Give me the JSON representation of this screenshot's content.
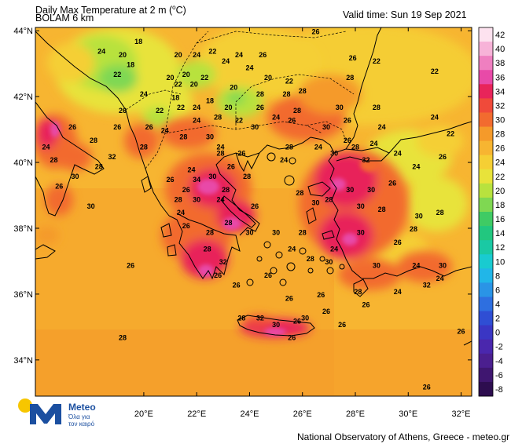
{
  "header": {
    "title_prefix": "Daily Max Temperature at 2 m (",
    "title_unit_deg": "o",
    "title_suffix": "C)",
    "model": "BOLAM 6 km",
    "valid_time": "Valid time: Sun 19 Sep 2021"
  },
  "footer": {
    "credit": "National Observatory of Athens, Greece - meteo.gr"
  },
  "logo": {
    "name": "Meteo",
    "tagline_1": "Όλα για",
    "tagline_2": "τον καιρό",
    "colors": {
      "yellow": "#f7c600",
      "blue": "#1b4fa0"
    }
  },
  "axes": {
    "lat_labels": [
      "44°N",
      "42°N",
      "40°N",
      "38°N",
      "36°N",
      "34°N"
    ],
    "lon_labels": [
      "20°E",
      "22°E",
      "24°E",
      "26°E",
      "28°E",
      "30°E",
      "32°E"
    ]
  },
  "colorbar": {
    "levels": [
      "42",
      "40",
      "38",
      "36",
      "34",
      "32",
      "30",
      "28",
      "26",
      "24",
      "22",
      "20",
      "18",
      "16",
      "14",
      "12",
      "10",
      "8",
      "6",
      "4",
      "2",
      "0",
      "-2",
      "-4",
      "-6",
      "-8"
    ],
    "colors": [
      "#fde2ef",
      "#f7b3d8",
      "#ef7fc0",
      "#e84aa8",
      "#e8245a",
      "#f04a3a",
      "#f26b2f",
      "#f59a2a",
      "#f7b531",
      "#f5cf34",
      "#e8e33a",
      "#b8e23e",
      "#7fd852",
      "#3fcb64",
      "#22c77f",
      "#1ac9a4",
      "#19cbd0",
      "#21b6e8",
      "#2a94e6",
      "#2e6fe0",
      "#2f4ed4",
      "#3a36c4",
      "#4a27ad",
      "#4b1f8f",
      "#3f1670",
      "#2d0d4f"
    ]
  },
  "map_labels": [
    {
      "t": "18",
      "lon": 19.8,
      "lat": 43.6
    },
    {
      "t": "24",
      "lon": 18.4,
      "lat": 43.3
    },
    {
      "t": "20",
      "lon": 19.2,
      "lat": 43.2
    },
    {
      "t": "18",
      "lon": 19.5,
      "lat": 42.9
    },
    {
      "t": "22",
      "lon": 19.0,
      "lat": 42.6
    },
    {
      "t": "20",
      "lon": 21.3,
      "lat": 43.2
    },
    {
      "t": "24",
      "lon": 22.0,
      "lat": 43.2
    },
    {
      "t": "22",
      "lon": 22.6,
      "lat": 43.3
    },
    {
      "t": "24",
      "lon": 23.1,
      "lat": 43.0
    },
    {
      "t": "24",
      "lon": 23.6,
      "lat": 43.2
    },
    {
      "t": "26",
      "lon": 24.5,
      "lat": 43.2
    },
    {
      "t": "26",
      "lon": 26.5,
      "lat": 43.9
    },
    {
      "t": "26",
      "lon": 27.9,
      "lat": 43.1
    },
    {
      "t": "22",
      "lon": 28.8,
      "lat": 43.0
    },
    {
      "t": "22",
      "lon": 31.0,
      "lat": 42.7
    },
    {
      "t": "24",
      "lon": 24.0,
      "lat": 42.8
    },
    {
      "t": "20",
      "lon": 24.7,
      "lat": 42.5
    },
    {
      "t": "22",
      "lon": 25.5,
      "lat": 42.4
    },
    {
      "t": "20",
      "lon": 21.0,
      "lat": 42.5
    },
    {
      "t": "20",
      "lon": 21.6,
      "lat": 42.6
    },
    {
      "t": "22",
      "lon": 21.3,
      "lat": 42.3
    },
    {
      "t": "20",
      "lon": 21.9,
      "lat": 42.3
    },
    {
      "t": "22",
      "lon": 22.3,
      "lat": 42.5
    },
    {
      "t": "24",
      "lon": 20.0,
      "lat": 42.0
    },
    {
      "t": "18",
      "lon": 21.2,
      "lat": 41.9
    },
    {
      "t": "20",
      "lon": 23.4,
      "lat": 42.2
    },
    {
      "t": "28",
      "lon": 24.4,
      "lat": 42.0
    },
    {
      "t": "28",
      "lon": 25.4,
      "lat": 42.0
    },
    {
      "t": "28",
      "lon": 26.0,
      "lat": 42.1
    },
    {
      "t": "28",
      "lon": 27.8,
      "lat": 42.5
    },
    {
      "t": "26",
      "lon": 19.2,
      "lat": 41.5
    },
    {
      "t": "22",
      "lon": 20.6,
      "lat": 41.5
    },
    {
      "t": "22",
      "lon": 21.4,
      "lat": 41.6
    },
    {
      "t": "24",
      "lon": 22.0,
      "lat": 41.6
    },
    {
      "t": "18",
      "lon": 22.5,
      "lat": 41.8
    },
    {
      "t": "20",
      "lon": 23.2,
      "lat": 41.6
    },
    {
      "t": "26",
      "lon": 24.4,
      "lat": 41.6
    },
    {
      "t": "24",
      "lon": 25.0,
      "lat": 41.3
    },
    {
      "t": "26",
      "lon": 25.6,
      "lat": 41.2
    },
    {
      "t": "28",
      "lon": 25.8,
      "lat": 41.5
    },
    {
      "t": "30",
      "lon": 27.4,
      "lat": 41.6
    },
    {
      "t": "28",
      "lon": 28.8,
      "lat": 41.6
    },
    {
      "t": "24",
      "lon": 31.0,
      "lat": 41.3
    },
    {
      "t": "26",
      "lon": 19.0,
      "lat": 41.0
    },
    {
      "t": "26",
      "lon": 17.3,
      "lat": 41.0
    },
    {
      "t": "26",
      "lon": 20.2,
      "lat": 41.0
    },
    {
      "t": "24",
      "lon": 22.0,
      "lat": 41.2
    },
    {
      "t": "28",
      "lon": 22.8,
      "lat": 41.3
    },
    {
      "t": "22",
      "lon": 23.6,
      "lat": 41.2
    },
    {
      "t": "30",
      "lon": 24.2,
      "lat": 41.0
    },
    {
      "t": "30",
      "lon": 26.9,
      "lat": 41.0
    },
    {
      "t": "26",
      "lon": 27.7,
      "lat": 41.2
    },
    {
      "t": "24",
      "lon": 29.0,
      "lat": 41.0
    },
    {
      "t": "22",
      "lon": 31.6,
      "lat": 40.8
    },
    {
      "t": "28",
      "lon": 18.1,
      "lat": 40.6
    },
    {
      "t": "32",
      "lon": 18.8,
      "lat": 40.1
    },
    {
      "t": "28",
      "lon": 18.3,
      "lat": 39.8
    },
    {
      "t": "30",
      "lon": 17.4,
      "lat": 39.5
    },
    {
      "t": "26",
      "lon": 16.8,
      "lat": 39.2
    },
    {
      "t": "30",
      "lon": 18.0,
      "lat": 38.6
    },
    {
      "t": "28",
      "lon": 16.6,
      "lat": 40.0
    },
    {
      "t": "24",
      "lon": 16.3,
      "lat": 40.4
    },
    {
      "t": "24",
      "lon": 20.8,
      "lat": 40.9
    },
    {
      "t": "28",
      "lon": 20.0,
      "lat": 40.4
    },
    {
      "t": "28",
      "lon": 21.5,
      "lat": 40.7
    },
    {
      "t": "30",
      "lon": 22.5,
      "lat": 40.7
    },
    {
      "t": "28",
      "lon": 22.9,
      "lat": 40.2
    },
    {
      "t": "26",
      "lon": 23.7,
      "lat": 40.2
    },
    {
      "t": "26",
      "lon": 23.3,
      "lat": 39.8
    },
    {
      "t": "24",
      "lon": 22.9,
      "lat": 40.4
    },
    {
      "t": "24",
      "lon": 25.3,
      "lat": 40.0
    },
    {
      "t": "28",
      "lon": 25.5,
      "lat": 40.4
    },
    {
      "t": "24",
      "lon": 26.6,
      "lat": 40.4
    },
    {
      "t": "30",
      "lon": 27.2,
      "lat": 40.2
    },
    {
      "t": "26",
      "lon": 27.7,
      "lat": 40.6
    },
    {
      "t": "28",
      "lon": 28.0,
      "lat": 40.4
    },
    {
      "t": "32",
      "lon": 28.4,
      "lat": 40.0
    },
    {
      "t": "24",
      "lon": 28.7,
      "lat": 40.5
    },
    {
      "t": "24",
      "lon": 29.6,
      "lat": 40.2
    },
    {
      "t": "26",
      "lon": 31.3,
      "lat": 40.1
    },
    {
      "t": "24",
      "lon": 30.3,
      "lat": 39.8
    },
    {
      "t": "24",
      "lon": 21.8,
      "lat": 39.7
    },
    {
      "t": "26",
      "lon": 21.0,
      "lat": 39.4
    },
    {
      "t": "34",
      "lon": 22.0,
      "lat": 39.4
    },
    {
      "t": "30",
      "lon": 22.6,
      "lat": 39.5
    },
    {
      "t": "28",
      "lon": 23.1,
      "lat": 39.1
    },
    {
      "t": "24",
      "lon": 22.9,
      "lat": 38.8
    },
    {
      "t": "30",
      "lon": 22.0,
      "lat": 38.8
    },
    {
      "t": "28",
      "lon": 21.3,
      "lat": 38.8
    },
    {
      "t": "24",
      "lon": 21.4,
      "lat": 38.4
    },
    {
      "t": "26",
      "lon": 24.2,
      "lat": 38.6
    },
    {
      "t": "28",
      "lon": 25.9,
      "lat": 39.0
    },
    {
      "t": "30",
      "lon": 26.5,
      "lat": 38.7
    },
    {
      "t": "28",
      "lon": 27.0,
      "lat": 38.8
    },
    {
      "t": "30",
      "lon": 28.2,
      "lat": 38.6
    },
    {
      "t": "28",
      "lon": 29.0,
      "lat": 38.5
    },
    {
      "t": "30",
      "lon": 27.8,
      "lat": 39.1
    },
    {
      "t": "30",
      "lon": 28.6,
      "lat": 39.1
    },
    {
      "t": "26",
      "lon": 29.4,
      "lat": 39.3
    },
    {
      "t": "30",
      "lon": 30.4,
      "lat": 38.3
    },
    {
      "t": "28",
      "lon": 31.2,
      "lat": 38.4
    },
    {
      "t": "28",
      "lon": 30.2,
      "lat": 37.9
    },
    {
      "t": "26",
      "lon": 29.6,
      "lat": 37.5
    },
    {
      "t": "30",
      "lon": 28.2,
      "lat": 37.8
    },
    {
      "t": "28",
      "lon": 23.2,
      "lat": 38.1
    },
    {
      "t": "28",
      "lon": 22.5,
      "lat": 37.8
    },
    {
      "t": "30",
      "lon": 24.0,
      "lat": 37.8
    },
    {
      "t": "30",
      "lon": 25.0,
      "lat": 37.8
    },
    {
      "t": "28",
      "lon": 26.0,
      "lat": 37.8
    },
    {
      "t": "26",
      "lon": 21.6,
      "lat": 38.0
    },
    {
      "t": "24",
      "lon": 27.2,
      "lat": 37.3
    },
    {
      "t": "28",
      "lon": 26.3,
      "lat": 37.0
    },
    {
      "t": "30",
      "lon": 27.0,
      "lat": 36.9
    },
    {
      "t": "24",
      "lon": 25.6,
      "lat": 37.3
    },
    {
      "t": "28",
      "lon": 22.4,
      "lat": 37.3
    },
    {
      "t": "32",
      "lon": 23.0,
      "lat": 36.9
    },
    {
      "t": "26",
      "lon": 22.8,
      "lat": 36.5
    },
    {
      "t": "26",
      "lon": 19.5,
      "lat": 36.8
    },
    {
      "t": "26",
      "lon": 23.5,
      "lat": 36.2
    },
    {
      "t": "26",
      "lon": 24.7,
      "lat": 36.5
    },
    {
      "t": "30",
      "lon": 28.8,
      "lat": 36.8
    },
    {
      "t": "28",
      "lon": 28.1,
      "lat": 36.0
    },
    {
      "t": "26",
      "lon": 28.4,
      "lat": 35.6
    },
    {
      "t": "24",
      "lon": 29.6,
      "lat": 36.0
    },
    {
      "t": "24",
      "lon": 30.3,
      "lat": 36.8
    },
    {
      "t": "32",
      "lon": 30.7,
      "lat": 36.2
    },
    {
      "t": "24",
      "lon": 31.2,
      "lat": 36.4
    },
    {
      "t": "30",
      "lon": 31.3,
      "lat": 36.8
    },
    {
      "t": "26",
      "lon": 25.5,
      "lat": 35.8
    },
    {
      "t": "26",
      "lon": 26.7,
      "lat": 35.9
    },
    {
      "t": "26",
      "lon": 26.9,
      "lat": 35.4
    },
    {
      "t": "28",
      "lon": 23.7,
      "lat": 35.2
    },
    {
      "t": "32",
      "lon": 24.4,
      "lat": 35.2
    },
    {
      "t": "30",
      "lon": 25.0,
      "lat": 35.0
    },
    {
      "t": "26",
      "lon": 25.8,
      "lat": 35.1
    },
    {
      "t": "30",
      "lon": 26.1,
      "lat": 35.2
    },
    {
      "t": "26",
      "lon": 25.6,
      "lat": 34.6
    },
    {
      "t": "26",
      "lon": 27.5,
      "lat": 35.0
    },
    {
      "t": "26",
      "lon": 32.0,
      "lat": 34.8
    },
    {
      "t": "28",
      "lon": 19.2,
      "lat": 34.6
    },
    {
      "t": "26",
      "lon": 30.7,
      "lat": 33.1
    },
    {
      "t": "26",
      "lon": 21.6,
      "lat": 39.1
    },
    {
      "t": "28",
      "lon": 23.9,
      "lat": 39.5
    }
  ]
}
